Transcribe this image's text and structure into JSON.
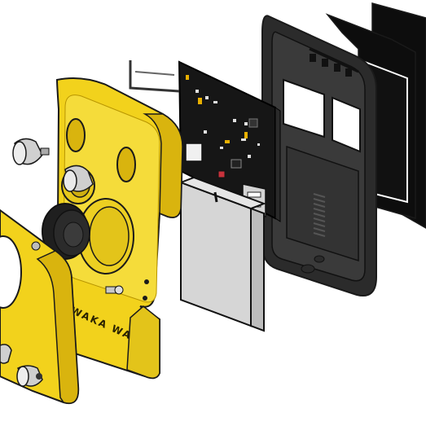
{
  "image": {
    "emboss_text": "WAKA WAKA",
    "colors": {
      "yellow": "#f2d21c",
      "yellow_shade": "#d9b40e",
      "yellow_dark": "#b89500",
      "outline": "#1a1a1a",
      "black_part": "#2b2b2b",
      "black_plate": "#0d0d0d",
      "pcb": "#161616",
      "battery": "#d6d6d6",
      "battery_side": "#bdbdbd",
      "metal": "#c9c9c9",
      "spring": "#555555"
    }
  }
}
